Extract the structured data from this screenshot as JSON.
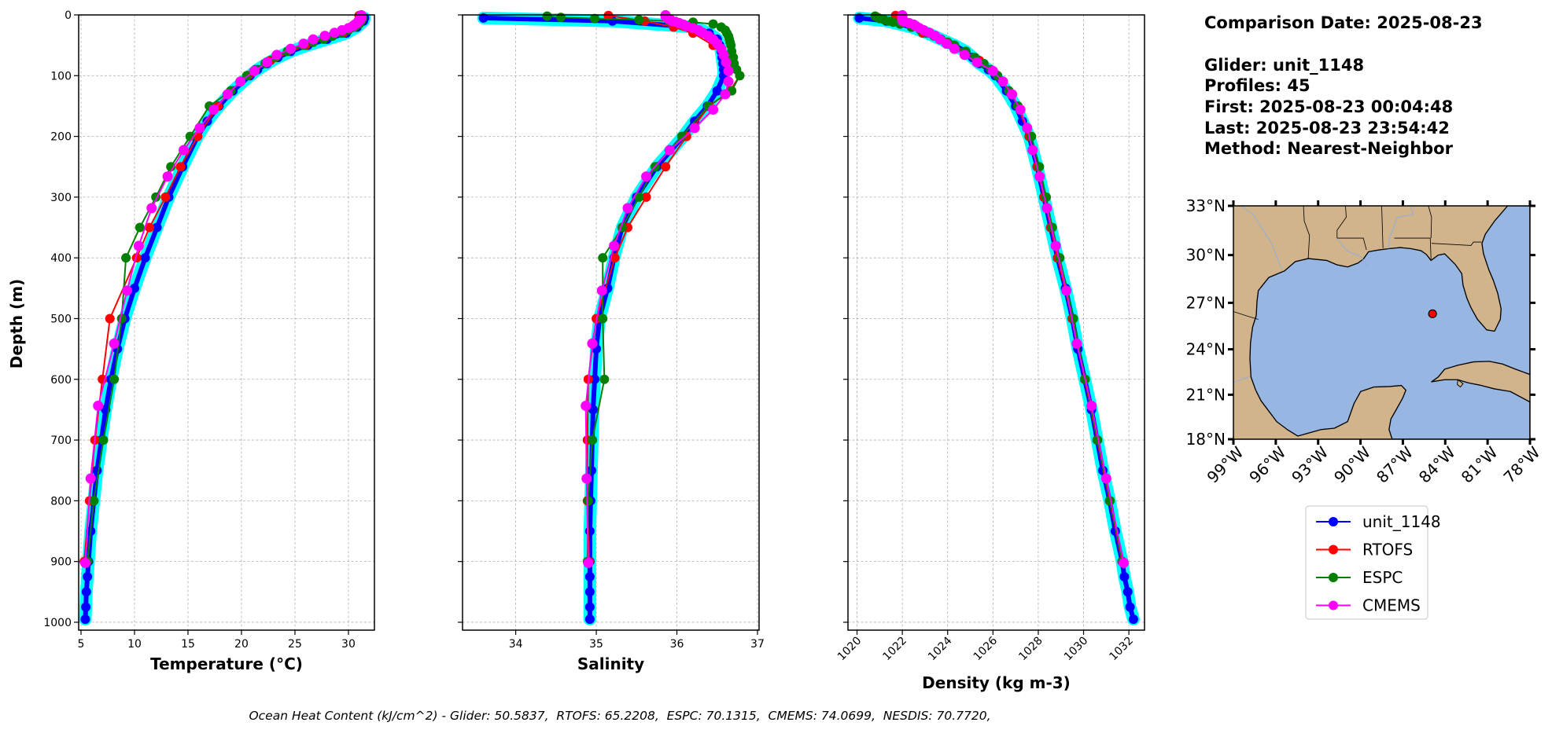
{
  "chart_data": {
    "type": "line",
    "ylabel": "Depth (m)",
    "ylim": [
      1013,
      0
    ],
    "yticks": [
      0,
      100,
      200,
      300,
      400,
      500,
      600,
      700,
      800,
      900,
      1000
    ],
    "grid": true,
    "legend_position": "right, below map",
    "panels": [
      {
        "key": "temperature",
        "xlabel": "Temperature (°C)",
        "xlim": [
          4.78,
          32.43
        ],
        "xticks": [
          5,
          10,
          15,
          20,
          25,
          30
        ],
        "ytick_labels": true
      },
      {
        "key": "salinity",
        "xlabel": "Salinity",
        "xlim": [
          33.34,
          37.02
        ],
        "xticks": [
          34,
          35,
          36,
          37
        ],
        "ytick_labels": false
      },
      {
        "key": "density",
        "xlabel": "Density (kg m-3)",
        "xlim": [
          1019.6,
          1032.69
        ],
        "xticks": [
          1020,
          1022,
          1024,
          1026,
          1028,
          1030,
          1032
        ],
        "ytick_labels": false
      }
    ],
    "series": [
      {
        "name": "unit_1148",
        "color": "#0000ff",
        "depth": [
          5,
          10,
          20,
          30,
          40,
          50,
          60,
          70,
          80,
          90,
          100,
          125,
          150,
          175,
          200,
          250,
          300,
          350,
          400,
          450,
          500,
          550,
          600,
          650,
          700,
          750,
          800,
          850,
          900,
          925,
          950,
          975,
          995
        ],
        "temperature": [
          31.5,
          31.4,
          30.8,
          29.8,
          28.0,
          26.2,
          24.6,
          23.4,
          22.4,
          21.5,
          20.8,
          19.2,
          17.9,
          16.8,
          15.9,
          14.5,
          13.2,
          12.1,
          11.0,
          10.0,
          9.1,
          8.4,
          7.8,
          7.3,
          6.9,
          6.5,
          6.2,
          5.9,
          5.7,
          5.6,
          5.5,
          5.45,
          5.4
        ],
        "salinity": [
          33.6,
          35.2,
          36.2,
          36.4,
          36.5,
          36.53,
          36.55,
          36.56,
          36.57,
          36.58,
          36.58,
          36.5,
          36.38,
          36.22,
          36.08,
          35.75,
          35.5,
          35.32,
          35.22,
          35.14,
          35.04,
          35.0,
          34.98,
          34.96,
          34.95,
          34.94,
          34.93,
          34.92,
          34.92,
          34.92,
          34.92,
          34.92,
          34.92
        ],
        "density": [
          1020.1,
          1021.3,
          1022.4,
          1023.1,
          1023.7,
          1024.3,
          1024.8,
          1025.1,
          1025.4,
          1025.8,
          1026.1,
          1026.6,
          1027.0,
          1027.3,
          1027.6,
          1027.95,
          1028.25,
          1028.55,
          1028.85,
          1029.2,
          1029.5,
          1029.75,
          1030.05,
          1030.35,
          1030.6,
          1030.85,
          1031.15,
          1031.4,
          1031.7,
          1031.8,
          1031.95,
          1032.05,
          1032.2
        ]
      },
      {
        "name": "RTOFS",
        "color": "#ff0000",
        "depth": [
          1,
          10,
          20,
          30,
          50,
          75,
          100,
          125,
          150,
          200,
          250,
          300,
          350,
          400,
          500,
          600,
          700,
          800,
          900
        ],
        "temperature": [
          31.0,
          30.9,
          30.5,
          29.5,
          26.0,
          22.7,
          20.6,
          19.0,
          17.8,
          15.9,
          14.3,
          12.9,
          11.4,
          10.2,
          7.7,
          7.0,
          6.3,
          5.8,
          5.3
        ],
        "salinity": [
          35.15,
          35.6,
          35.96,
          36.2,
          36.45,
          36.65,
          36.78,
          36.66,
          36.4,
          36.12,
          35.86,
          35.62,
          35.39,
          35.23,
          35.0,
          34.9,
          34.89,
          34.89,
          34.91
        ],
        "density": [
          1021.7,
          1021.9,
          1022.4,
          1022.9,
          1024.2,
          1025.4,
          1026.2,
          1026.7,
          1027.1,
          1027.6,
          1027.95,
          1028.25,
          1028.55,
          1028.85,
          1029.5,
          1030.05,
          1030.6,
          1031.15,
          1031.7
        ]
      },
      {
        "name": "ESPC",
        "color": "#008000",
        "depth": [
          2,
          4,
          6,
          8,
          10,
          12,
          15,
          20,
          25,
          30,
          35,
          40,
          45,
          50,
          60,
          70,
          80,
          90,
          100,
          125,
          150,
          200,
          250,
          300,
          350,
          400,
          500,
          600,
          700,
          800,
          900
        ],
        "temperature": [
          31.3,
          31.3,
          31.3,
          31.2,
          31.2,
          31.1,
          31.0,
          30.6,
          30.0,
          29.3,
          28.5,
          27.7,
          26.7,
          25.8,
          24.3,
          23.2,
          22.2,
          21.3,
          20.5,
          19.0,
          17.0,
          15.2,
          13.4,
          12.0,
          10.5,
          9.2,
          8.8,
          8.1,
          7.1,
          6.2,
          5.6
        ],
        "salinity": [
          34.39,
          34.56,
          34.98,
          35.53,
          35.9,
          36.2,
          36.45,
          36.55,
          36.6,
          36.62,
          36.64,
          36.65,
          36.66,
          36.67,
          36.68,
          36.7,
          36.71,
          36.74,
          36.78,
          36.68,
          36.39,
          36.06,
          35.73,
          35.53,
          35.32,
          35.08,
          35.08,
          35.1,
          34.95,
          34.9,
          34.89
        ],
        "density": [
          1020.8,
          1020.9,
          1021.0,
          1021.2,
          1021.4,
          1021.6,
          1021.9,
          1022.4,
          1022.8,
          1023.1,
          1023.4,
          1023.7,
          1024.0,
          1024.3,
          1024.8,
          1025.2,
          1025.6,
          1025.9,
          1026.2,
          1026.7,
          1027.1,
          1027.7,
          1028.05,
          1028.35,
          1028.62,
          1028.95,
          1029.55,
          1030.07,
          1030.62,
          1031.17,
          1031.72
        ]
      },
      {
        "name": "CMEMS",
        "color": "#ff00ff",
        "depth": [
          0.5,
          1.5,
          2.6,
          3.8,
          5,
          6.4,
          7.9,
          9.6,
          11.4,
          13.5,
          15.8,
          18.5,
          21.6,
          25.2,
          29.4,
          34.4,
          40.3,
          47.4,
          55.8,
          65.8,
          77.9,
          92.3,
          109.7,
          130.7,
          155.9,
          186.1,
          222.5,
          266.0,
          318.1,
          380.2,
          453.9,
          541.1,
          643.6,
          763.3,
          902.3
        ],
        "temperature": [
          31.2,
          31.2,
          31.2,
          31.2,
          31.2,
          31.1,
          31.1,
          31.0,
          30.9,
          30.8,
          30.6,
          30.4,
          30.0,
          29.4,
          28.7,
          27.8,
          26.7,
          25.8,
          24.6,
          23.3,
          22.4,
          21.2,
          19.9,
          18.7,
          17.4,
          16.1,
          14.6,
          13.1,
          11.6,
          10.4,
          9.3,
          8.1,
          6.6,
          5.9,
          5.4
        ],
        "salinity": [
          35.86,
          35.86,
          35.86,
          35.87,
          35.88,
          35.9,
          35.92,
          35.93,
          35.98,
          36.03,
          36.08,
          36.12,
          36.2,
          36.27,
          36.32,
          36.39,
          36.45,
          36.5,
          36.55,
          36.58,
          36.61,
          36.64,
          36.64,
          36.6,
          36.45,
          36.22,
          35.91,
          35.62,
          35.39,
          35.22,
          35.07,
          34.95,
          34.87,
          34.88,
          34.9
        ],
        "density": [
          1022.0,
          1022.0,
          1022.0,
          1022.0,
          1022.0,
          1022.0,
          1022.0,
          1022.0,
          1022.1,
          1022.3,
          1022.5,
          1022.6,
          1022.75,
          1022.95,
          1023.2,
          1023.45,
          1023.66,
          1023.95,
          1024.3,
          1024.75,
          1025.3,
          1026.0,
          1026.44,
          1026.84,
          1027.21,
          1027.51,
          1027.75,
          1028.06,
          1028.38,
          1028.77,
          1029.24,
          1029.7,
          1030.35,
          1031.0,
          1031.77
        ]
      }
    ],
    "envelope_color": "#00ffff"
  },
  "info": {
    "comparison_date": "Comparison Date: 2025-08-23",
    "glider": "Glider: unit_1148",
    "profiles": "Profiles: 45",
    "first": "First: 2025-08-23 00:04:48",
    "last": "Last: 2025-08-23 23:54:42",
    "method": "Method: Nearest-Neighbor"
  },
  "map": {
    "extent": {
      "lon": [
        -99,
        -78
      ],
      "lat": [
        18,
        33
      ]
    },
    "lat_ticks": [
      33,
      30,
      27,
      24,
      21,
      18
    ],
    "lat_labels": [
      "33°N",
      "30°N",
      "27°N",
      "24°N",
      "21°N",
      "18°N"
    ],
    "lon_ticks": [
      -99,
      -96,
      -93,
      -90,
      -87,
      -84,
      -81,
      -78
    ],
    "lon_labels": [
      "99°W",
      "96°W",
      "93°W",
      "90°W",
      "87°W",
      "84°W",
      "81°W",
      "78°W"
    ],
    "glider_position": {
      "lon": -84.9,
      "lat": 26.3
    },
    "land_color": "#d2b48c",
    "ocean_color": "#97b6e1"
  },
  "footer": {
    "prefix": "Ocean Heat Content (kJ/cm^2) - ",
    "items": [
      {
        "label": "Glider",
        "value": "50.5837"
      },
      {
        "label": "RTOFS",
        "value": "65.2208"
      },
      {
        "label": "ESPC",
        "value": "70.1315"
      },
      {
        "label": "CMEMS",
        "value": "74.0699"
      },
      {
        "label": "NESDIS",
        "value": "70.7720"
      }
    ]
  }
}
